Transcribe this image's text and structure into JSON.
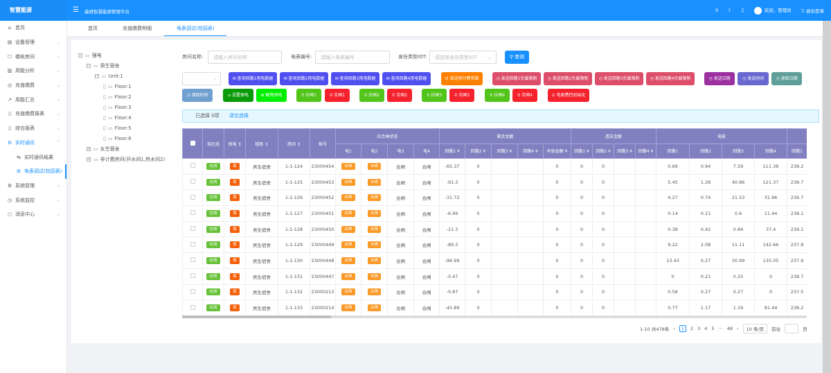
{
  "header": {
    "logo": "智慧能源",
    "platform": "森维智慧能源管理平台",
    "welcome": "欢迎，管理员",
    "logout": "退出登录",
    "icons": [
      "search-icon",
      "help-icon",
      "bell-icon"
    ]
  },
  "sidebar": {
    "items": [
      {
        "label": "首页",
        "icon": "⌂",
        "chev": false
      },
      {
        "label": "设备管理",
        "icon": "▤",
        "chev": true
      },
      {
        "label": "楼栋房间",
        "icon": "☐",
        "chev": true
      },
      {
        "label": "用能分析",
        "icon": "▥",
        "chev": true
      },
      {
        "label": "充值缴费",
        "icon": "◎",
        "chev": true
      },
      {
        "label": "用能汇总",
        "icon": "↗",
        "chev": true
      },
      {
        "label": "充值缴费报表",
        "icon": "▯",
        "chev": true
      },
      {
        "label": "综合报表",
        "icon": "▯",
        "chev": true
      },
      {
        "label": "实时通讯",
        "icon": "⚙",
        "chev": true,
        "open": true
      },
      {
        "label": "实时通讯结果",
        "icon": "⇆",
        "sub": true
      },
      {
        "label": "电表调试(校园表)",
        "icon": "⊞",
        "sub": true,
        "on": true
      },
      {
        "label": "系统管理",
        "icon": "⚙",
        "chev": true
      },
      {
        "label": "系统监控",
        "icon": "◷",
        "chev": true
      },
      {
        "label": "消息中心",
        "icon": "○",
        "chev": true
      }
    ]
  },
  "tabs": [
    {
      "label": "首页"
    },
    {
      "label": "充值缴费明细"
    },
    {
      "label": "电表调试(校园表)",
      "active": true
    }
  ],
  "tree": [
    {
      "label": "强电",
      "level": 0,
      "box": "−"
    },
    {
      "label": "男生宿舍",
      "level": 1,
      "box": "−"
    },
    {
      "label": "Unit:1",
      "level": 2,
      "box": "−"
    },
    {
      "label": "Floor:1",
      "level": 3
    },
    {
      "label": "Floor:2",
      "level": 3
    },
    {
      "label": "Floor:3",
      "level": 3
    },
    {
      "label": "Floor:4",
      "level": 3
    },
    {
      "label": "Floor:5",
      "level": 3
    },
    {
      "label": "Floor:6",
      "level": 3
    },
    {
      "label": "女生宿舍",
      "level": 1,
      "box": "+"
    },
    {
      "label": "非计费房间(开水间1,热水间2)",
      "level": 1,
      "box": "+"
    }
  ],
  "filter": {
    "room_label": "房间名称:",
    "room_placeholder": "请输入房间名称",
    "meter_label": "电表编号:",
    "meter_placeholder": "请输入电表编号",
    "type_label": "身份类型IOT:",
    "type_placeholder": "请选择身份类型IOT",
    "query": "查询"
  },
  "buttons_row1": [
    {
      "label": "✉ 查询回路1用电数据",
      "color": "#5050f0",
      "w": 70,
      "ml": 11
    },
    {
      "label": "✉ 查询回路2用电数据",
      "color": "#5050f0",
      "w": 70,
      "ml": 4
    },
    {
      "label": "✉ 查询回路3用电数据",
      "color": "#5050f0",
      "w": 70,
      "ml": 4
    },
    {
      "label": "✉ 查询回路4用电数据",
      "color": "#5050f0",
      "w": 70,
      "ml": 4
    },
    {
      "label": "⊡ 发送预付费参数",
      "color": "#ff8000",
      "w": 60,
      "ml": 15
    },
    {
      "label": "◷ 发送回路1负载限制",
      "color": "#dc4e6a",
      "w": 70,
      "ml": 14
    },
    {
      "label": "◷ 发送回路2负载限制",
      "color": "#dc4e6a",
      "w": 70,
      "ml": 4
    },
    {
      "label": "◷ 发送回路3负载限制",
      "color": "#dc4e6a",
      "w": 70,
      "ml": 4
    },
    {
      "label": "◷ 发送回路4负载限制",
      "color": "#dc4e6a",
      "w": 70,
      "ml": 4
    },
    {
      "label": "◷ 发送日期",
      "color": "#9b30a0",
      "w": 44,
      "ml": 14
    },
    {
      "label": "◷ 发送时间",
      "color": "#6868d0",
      "w": 45,
      "ml": 4
    },
    {
      "label": "◷ 读取日期",
      "color": "#5f9e9a",
      "w": 44,
      "ml": 4
    }
  ],
  "buttons_row2": [
    {
      "label": "◷ 读取时间",
      "color": "#6fa0d0",
      "w": 44,
      "ml": 0
    },
    {
      "label": "⌂ 设置保电",
      "color": "#089a08",
      "w": 44,
      "ml": 15
    },
    {
      "label": "⊗ 解除保电",
      "color": "#00ee00",
      "w": 44,
      "ml": 4
    },
    {
      "label": "⚲ 拉闸1",
      "color": "#52c41a",
      "w": 36,
      "ml": 14
    },
    {
      "label": "⚲ 合闸1",
      "color": "#f5222d",
      "w": 36,
      "ml": 5
    },
    {
      "label": "⚲ 拉闸2",
      "color": "#52c41a",
      "w": 36,
      "ml": 14
    },
    {
      "label": "⚲ 合闸2",
      "color": "#f5222d",
      "w": 36,
      "ml": 4
    },
    {
      "label": "⚲ 拉闸3",
      "color": "#52c41a",
      "w": 36,
      "ml": 14
    },
    {
      "label": "⚲ 合闸3",
      "color": "#f5222d",
      "w": 36,
      "ml": 4
    },
    {
      "label": "⚲ 拉闸4",
      "color": "#52c41a",
      "w": 36,
      "ml": 15
    },
    {
      "label": "⚲ 合闸4",
      "color": "#f5222d",
      "w": 36,
      "ml": 4
    },
    {
      "label": "⊙ 电表费控初始化",
      "color": "#f5222d",
      "w": 60,
      "ml": 15
    }
  ],
  "alert": {
    "selected": "已选择 0项",
    "clear": "清空选择"
  },
  "table": {
    "top_headers": [
      "电在线",
      "保电 ↕",
      "楼栋 ↕",
      "房间 ↕",
      "帐号"
    ],
    "groups": [
      {
        "label": "拉合闸状态",
        "sub": [
          "电1",
          "电2",
          "电3",
          "电4"
        ]
      },
      {
        "label": "剩余金额",
        "sub": [
          "回路1 ¥",
          "回路2 ¥",
          "回路3 ¥",
          "回路4 ¥",
          "补助金额 ¥"
        ]
      },
      {
        "label": "透支金额",
        "sub": [
          "回路1 ¥",
          "回路2 ¥",
          "回路3 ¥",
          "回路4 ¥"
        ]
      },
      {
        "label": "电能",
        "sub": [
          "回路1",
          "回路2",
          "回路3",
          "回路4"
        ]
      },
      {
        "label": "",
        "sub": [
          "回路1"
        ]
      }
    ],
    "tags": {
      "online": "在线",
      "bao": "保",
      "he": "合闸"
    },
    "rows": [
      [
        "男生宿舍",
        "1-1-124",
        "23000454",
        "合闸",
        "合闸",
        "合闸",
        "合闸",
        "-65.37",
        "0",
        "",
        "",
        "0",
        "0",
        "0",
        "",
        "",
        "0.69",
        "0.94",
        "7.59",
        "111.38",
        "238.2"
      ],
      [
        "男生宿舍",
        "1-1-125",
        "23000453",
        "合闸",
        "合闸",
        "合闸",
        "合闸",
        "-91.3",
        "0",
        "",
        "",
        "0",
        "0",
        "0",
        "",
        "",
        "5.45",
        "1.28",
        "40.86",
        "121.37",
        "238.7"
      ],
      [
        "男生宿舍",
        "1-1-126",
        "23000452",
        "合闸",
        "合闸",
        "合闸",
        "合闸",
        "-31.72",
        "0",
        "",
        "",
        "0",
        "0",
        "0",
        "",
        "",
        "4.27",
        "0.74",
        "21.53",
        "31.96",
        "236.7"
      ],
      [
        "男生宿舍",
        "1-1-127",
        "23000451",
        "合闸",
        "合闸",
        "合闸",
        "合闸",
        "-6.99",
        "0",
        "",
        "",
        "0",
        "0",
        "0",
        "",
        "",
        "0.14",
        "0.21",
        "0.6",
        "11.44",
        "238.1"
      ],
      [
        "男生宿舍",
        "1-1-128",
        "23000450",
        "合闸",
        "合闸",
        "合闸",
        "合闸",
        "-21.3",
        "0",
        "",
        "",
        "0",
        "0",
        "0",
        "",
        "",
        "0.38",
        "0.42",
        "0.84",
        "37.4",
        "239.1"
      ],
      [
        "男生宿舍",
        "1-1-129",
        "23000449",
        "合闸",
        "合闸",
        "合闸",
        "合闸",
        "-89.3",
        "0",
        "",
        "",
        "0",
        "0",
        "0",
        "",
        "",
        "9.22",
        "2.08",
        "11.11",
        "142.66",
        "237.8"
      ],
      [
        "男生宿舍",
        "1-1-130",
        "23000448",
        "合闸",
        "合闸",
        "合闸",
        "合闸",
        "-96.99",
        "0",
        "",
        "",
        "0",
        "0",
        "0",
        "",
        "",
        "13.43",
        "0.27",
        "30.99",
        "135.05",
        "237.9"
      ],
      [
        "男生宿舍",
        "1-1-131",
        "23000447",
        "合闸",
        "合闸",
        "合闸",
        "合闸",
        "-0.47",
        "0",
        "",
        "",
        "0",
        "0",
        "0",
        "",
        "",
        "0",
        "0.21",
        "0.25",
        "0",
        "238.7"
      ],
      [
        "男生宿舍",
        "1-1-132",
        "23000213",
        "合闸",
        "合闸",
        "合闸",
        "合闸",
        "-0.87",
        "0",
        "",
        "",
        "0",
        "0",
        "0",
        "",
        "",
        "0.58",
        "0.27",
        "0.27",
        "0",
        "237.5"
      ],
      [
        "男生宿舍",
        "1-1-133",
        "23000214",
        "合闸",
        "合闸",
        "合闸",
        "合闸",
        "-45.89",
        "0",
        "",
        "",
        "0",
        "0",
        "0",
        "",
        "",
        "0.77",
        "1.17",
        "1.19",
        "81.44",
        "238.2"
      ]
    ]
  },
  "pagination": {
    "summary": "1-10 共478条",
    "pages": [
      "1",
      "2",
      "3",
      "4",
      "5",
      "···",
      "48"
    ],
    "current": "1",
    "page_size": "10 条/页",
    "goto": "前往",
    "page_unit": "页"
  }
}
